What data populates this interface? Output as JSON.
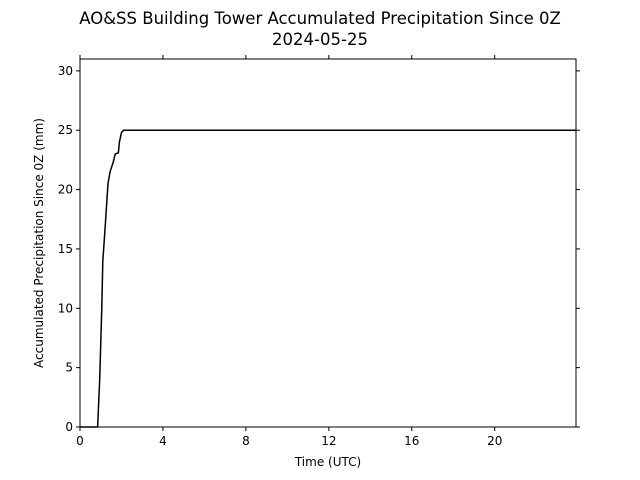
{
  "chart_data": {
    "type": "line",
    "title": "AO&SS Building Tower Accumulated Precipitation Since 0Z",
    "subtitle": "2024-05-25",
    "x_label": "Time (UTC)",
    "y_label": "Accumulated Precipitation Since 0Z (mm)",
    "x": [
      0,
      0.85,
      0.95,
      1.05,
      1.1,
      1.2,
      1.35,
      1.45,
      1.6,
      1.7,
      1.85,
      1.9,
      2.0,
      2.1,
      23.92
    ],
    "series": [
      {
        "name": "Accumulated Precipitation",
        "color": "#000000",
        "values": [
          0,
          0,
          4,
          10,
          14,
          16.5,
          20.5,
          21.5,
          22.3,
          23,
          23.1,
          24,
          24.8,
          25,
          25
        ]
      }
    ],
    "xlim": [
      0,
      23.92
    ],
    "xticks": [
      0,
      4,
      8,
      12,
      16,
      20
    ],
    "ylim": [
      0,
      31
    ],
    "yticks": [
      0,
      5,
      10,
      15,
      20,
      25,
      30
    ]
  }
}
